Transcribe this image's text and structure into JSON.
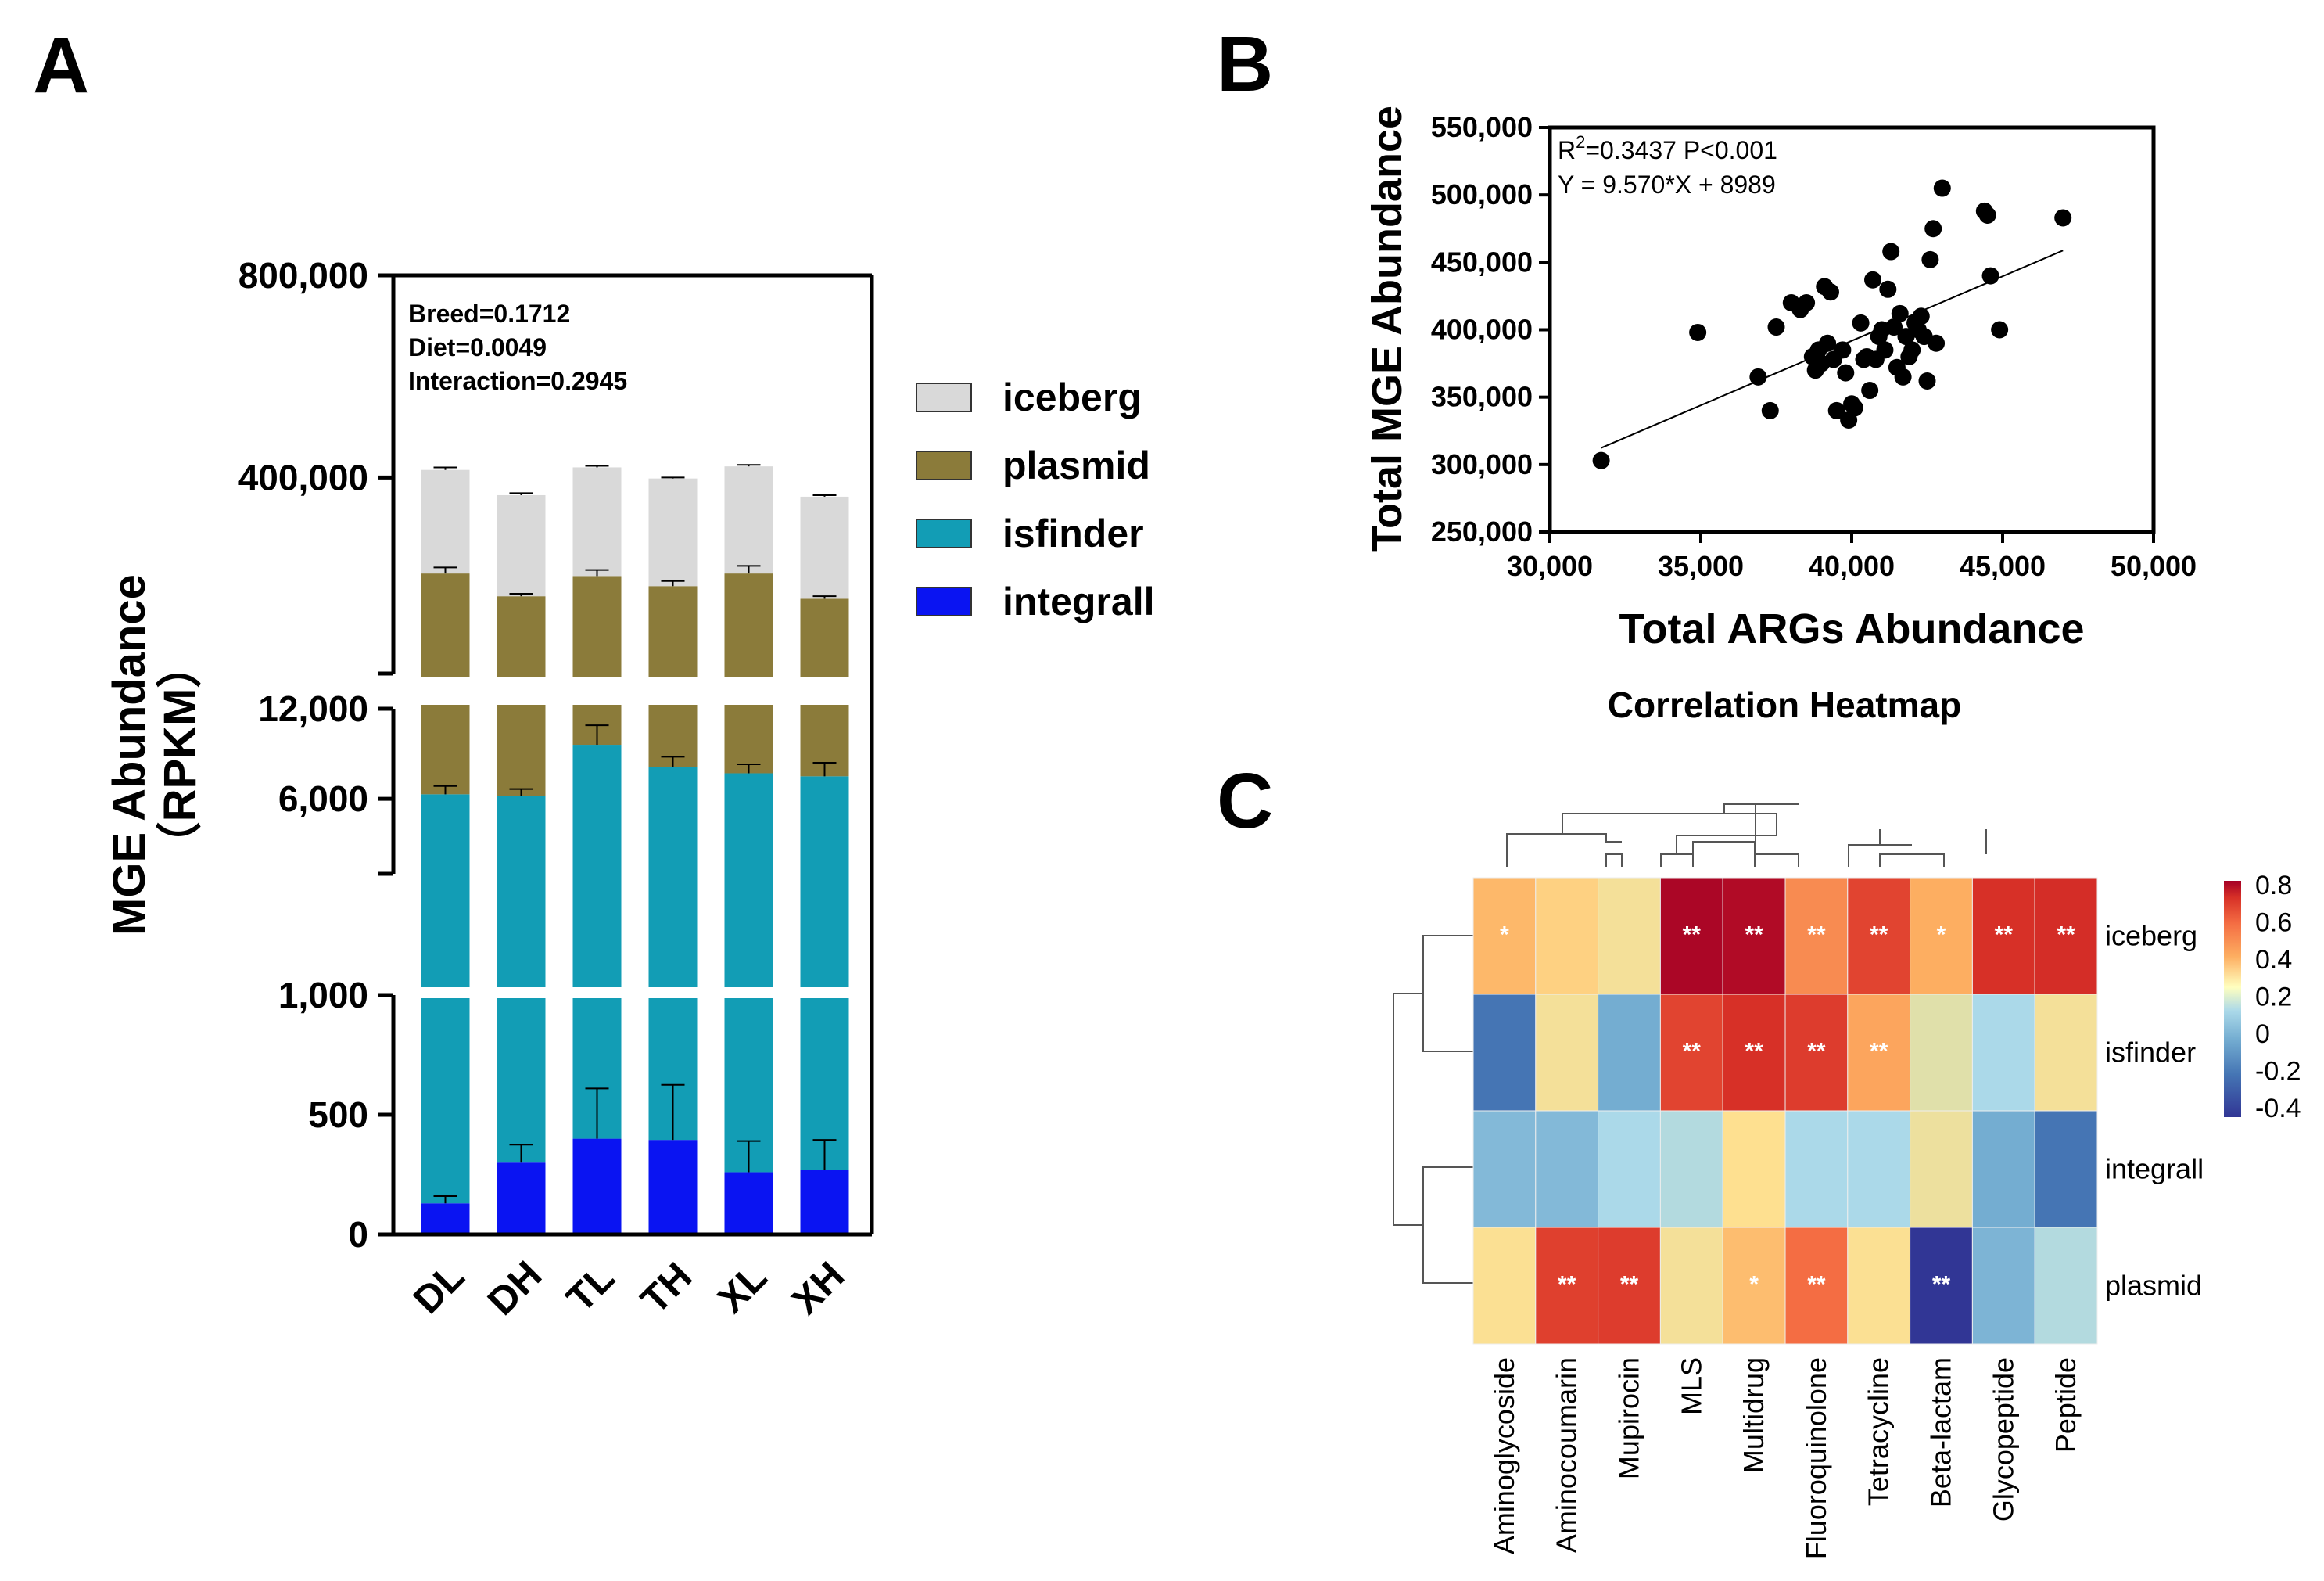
{
  "chart_data": [
    {
      "panel_label": "A",
      "type": "bar",
      "stacked": true,
      "ylabel_line1": "MGE Abundance",
      "ylabel_line2": "（RPKM）",
      "categories": [
        "DL",
        "DH",
        "TL",
        "TH",
        "XL",
        "XH"
      ],
      "series": [
        {
          "name": "integrall",
          "color": "#0a14f2",
          "values": [
            130,
            300,
            400,
            395,
            260,
            270
          ],
          "errors": [
            30,
            75,
            210,
            230,
            130,
            125
          ]
        },
        {
          "name": "isfinder",
          "color": "#129db5",
          "values": [
            6300,
            6200,
            9600,
            8100,
            7700,
            7500
          ],
          "errors": [
            550,
            450,
            1300,
            700,
            600,
            900
          ]
        },
        {
          "name": "plasmid",
          "color": "#8b7b3a",
          "values": [
            210000,
            165000,
            205000,
            185000,
            210000,
            160000
          ],
          "errors": [
            12000,
            5000,
            12000,
            10000,
            15000,
            5000
          ]
        },
        {
          "name": "iceberg",
          "color": "#d9d9d9",
          "values": [
            415000,
            365000,
            420000,
            398000,
            422000,
            362000
          ],
          "errors": [
            5000,
            4000,
            3000,
            2000,
            3000,
            3000
          ]
        }
      ],
      "y_segments": [
        {
          "range": [
            0,
            1000
          ],
          "ticks": [
            {
              "v": 0,
              "label": "0"
            },
            {
              "v": 500,
              "label": "500"
            },
            {
              "v": 1000,
              "label": "1,000"
            }
          ]
        },
        {
          "range": [
            1000,
            12000
          ],
          "ticks": [
            {
              "v": 6000,
              "label": "6,000"
            },
            {
              "v": 12000,
              "label": "12,000"
            }
          ]
        },
        {
          "range": [
            12000,
            800000
          ],
          "ticks": [
            {
              "v": 400000,
              "label": "400,000"
            },
            {
              "v": 800000,
              "label": "800,000"
            }
          ]
        }
      ],
      "stats_annotations": [
        "Breed=0.1712",
        "Diet=0.0049",
        "Interaction=0.2945"
      ],
      "legend": [
        "iceberg",
        "plasmid",
        "isfinder",
        "integrall"
      ]
    },
    {
      "panel_label": "B",
      "type": "scatter",
      "xlabel": "Total ARGs Abundance",
      "ylabel": "Total MGE Abundance",
      "xlim": [
        30000,
        50000
      ],
      "ylim": [
        250000,
        550000
      ],
      "xticks": [
        {
          "v": 30000,
          "label": "30,000"
        },
        {
          "v": 35000,
          "label": "35,000"
        },
        {
          "v": 40000,
          "label": "40,000"
        },
        {
          "v": 45000,
          "label": "45,000"
        },
        {
          "v": 50000,
          "label": "50,000"
        }
      ],
      "yticks": [
        {
          "v": 250000,
          "label": "250,000"
        },
        {
          "v": 300000,
          "label": "300,000"
        },
        {
          "v": 350000,
          "label": "350,000"
        },
        {
          "v": 400000,
          "label": "400,000"
        },
        {
          "v": 450000,
          "label": "450,000"
        },
        {
          "v": 500000,
          "label": "500,000"
        },
        {
          "v": 550000,
          "label": "550,000"
        }
      ],
      "annotation_r2": "R",
      "annotation_r2_sup": "2",
      "annotation_r2_rest": "=0.3437 P<0.001",
      "annotation_equation": "Y = 9.570*X + 8989",
      "fit": {
        "slope": 9.57,
        "intercept": 8989,
        "x_range": [
          31700,
          47000
        ]
      },
      "points": [
        [
          31700,
          303000
        ],
        [
          34900,
          398000
        ],
        [
          36900,
          365000
        ],
        [
          37300,
          340000
        ],
        [
          37500,
          402000
        ],
        [
          38000,
          420000
        ],
        [
          38300,
          415000
        ],
        [
          38500,
          420000
        ],
        [
          38700,
          380000
        ],
        [
          38800,
          370000
        ],
        [
          38900,
          385000
        ],
        [
          39000,
          375000
        ],
        [
          39100,
          432000
        ],
        [
          39200,
          390000
        ],
        [
          39300,
          428000
        ],
        [
          39400,
          378000
        ],
        [
          39500,
          340000
        ],
        [
          39700,
          385000
        ],
        [
          39800,
          368000
        ],
        [
          39900,
          333000
        ],
        [
          40100,
          342000
        ],
        [
          40300,
          405000
        ],
        [
          40400,
          378000
        ],
        [
          40500,
          380000
        ],
        [
          40600,
          355000
        ],
        [
          40700,
          437000
        ],
        [
          40800,
          378000
        ],
        [
          40900,
          395000
        ],
        [
          41000,
          400000
        ],
        [
          41100,
          385000
        ],
        [
          41200,
          430000
        ],
        [
          41300,
          458000
        ],
        [
          41400,
          402000
        ],
        [
          41500,
          372000
        ],
        [
          41600,
          412000
        ],
        [
          41700,
          365000
        ],
        [
          41800,
          395000
        ],
        [
          41900,
          380000
        ],
        [
          42000,
          385000
        ],
        [
          42100,
          405000
        ],
        [
          42200,
          400000
        ],
        [
          42300,
          410000
        ],
        [
          42400,
          395000
        ],
        [
          42500,
          362000
        ],
        [
          42600,
          452000
        ],
        [
          42700,
          475000
        ],
        [
          42800,
          390000
        ],
        [
          43000,
          505000
        ],
        [
          44400,
          488000
        ],
        [
          44500,
          485000
        ],
        [
          44600,
          440000
        ],
        [
          44900,
          400000
        ],
        [
          47000,
          483000
        ],
        [
          40000,
          345000
        ]
      ]
    },
    {
      "panel_label": "C",
      "type": "heatmap",
      "title": "Correlation Heatmap",
      "columns": [
        "Aminoglycoside",
        "Aminocoumarin",
        "Mupirocin",
        "MLS",
        "Multidrug",
        "Fluoroquinolone",
        "Tetracycline",
        "Beta-lactam",
        "Glycopeptide",
        "Peptide"
      ],
      "rows": [
        "iceberg",
        "isfinder",
        "integrall",
        "plasmid"
      ],
      "values": [
        [
          0.33,
          0.28,
          0.22,
          0.8,
          0.78,
          0.43,
          0.6,
          0.35,
          0.65,
          0.66
        ],
        [
          -0.3,
          0.22,
          -0.15,
          0.6,
          0.65,
          0.62,
          0.37,
          0.16,
          0.03,
          0.22
        ],
        [
          -0.1,
          -0.1,
          0.03,
          0.05,
          0.25,
          0.03,
          0.03,
          0.2,
          -0.15,
          -0.3
        ],
        [
          0.24,
          0.61,
          0.62,
          0.22,
          0.32,
          0.5,
          0.24,
          -0.45,
          -0.12,
          0.05
        ]
      ],
      "significance": [
        [
          "*",
          "",
          "",
          "**",
          "**",
          "**",
          "**",
          "*",
          "**",
          "**"
        ],
        [
          "",
          "",
          "",
          "**",
          "**",
          "**",
          "**",
          "",
          "",
          ""
        ],
        [
          "",
          "",
          "",
          "",
          "",
          "",
          "",
          "",
          "",
          ""
        ],
        [
          "",
          "**",
          "**",
          "",
          "*",
          "**",
          "",
          "**",
          "",
          ""
        ]
      ],
      "colorbar_ticks": [
        {
          "v": 0.8,
          "label": "0.8"
        },
        {
          "v": 0.6,
          "label": "0.6"
        },
        {
          "v": 0.4,
          "label": "0.4"
        },
        {
          "v": 0.2,
          "label": "0.2"
        },
        {
          "v": 0,
          "label": "0"
        },
        {
          "v": -0.2,
          "label": "-0.2"
        },
        {
          "v": -0.4,
          "label": "-0.4"
        }
      ],
      "colorbar_range": [
        -0.45,
        0.82
      ]
    }
  ]
}
